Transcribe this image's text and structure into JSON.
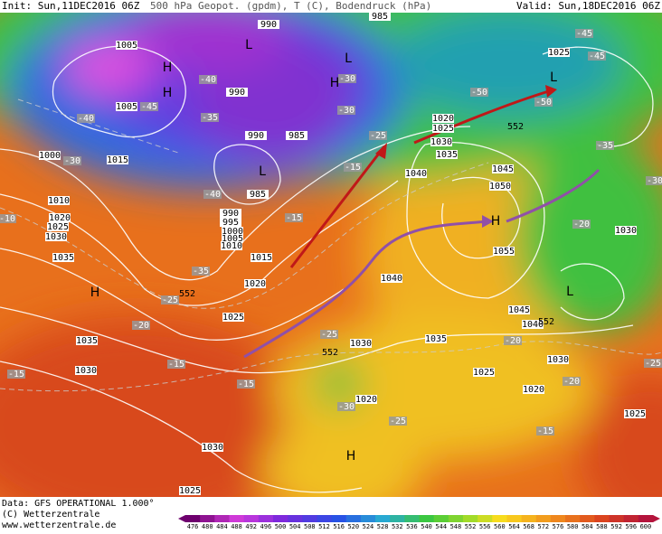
{
  "header": {
    "init": "Init: Sun,11DEC2016 06Z",
    "product": "500 hPa Geopot. (gpdm), T (C), Bodendruck (hPa)",
    "valid": "Valid: Sun,18DEC2016 06Z"
  },
  "footer": {
    "data": "Data: GFS OPERATIONAL 1.000°",
    "copyright": "(C) Wetterzentrale",
    "url": "www.wetterzentrale.de"
  },
  "colorbar": {
    "labels": [
      476,
      480,
      484,
      488,
      492,
      496,
      500,
      504,
      508,
      512,
      516,
      520,
      524,
      528,
      532,
      536,
      540,
      544,
      548,
      552,
      556,
      560,
      564,
      568,
      572,
      576,
      580,
      584,
      588,
      592,
      596,
      600
    ]
  },
  "map": {
    "pressure_labels": [
      990,
      985,
      1005,
      1005,
      990,
      990,
      985,
      1000,
      1015,
      1010,
      1020,
      1025,
      1030,
      1035,
      1020,
      1025,
      1030,
      1035,
      1040,
      1045,
      1050,
      985,
      990,
      995,
      1000,
      1005,
      1010,
      1015,
      1020,
      1025,
      1035,
      1030,
      1030,
      1025,
      1040,
      1055,
      1030,
      1035,
      1045,
      1040,
      1025,
      1030,
      1020,
      1020,
      1025,
      1025,
      1030
    ],
    "temperature_labels": [
      -45,
      -45,
      -40,
      -45,
      -40,
      -30,
      -35,
      -30,
      -30,
      -25,
      -50,
      -50,
      -35,
      -30,
      -15,
      -40,
      -15,
      -20,
      -10,
      -35,
      -25,
      -20,
      -25,
      -15,
      -15,
      -15,
      -20,
      -20,
      -25,
      -15,
      -30,
      -25
    ],
    "height_labels": [
      552,
      552,
      552,
      552
    ],
    "centers": [
      "L",
      "L",
      "L",
      "L",
      "H",
      "H",
      "H",
      "H",
      "H",
      "L",
      "H"
    ]
  }
}
